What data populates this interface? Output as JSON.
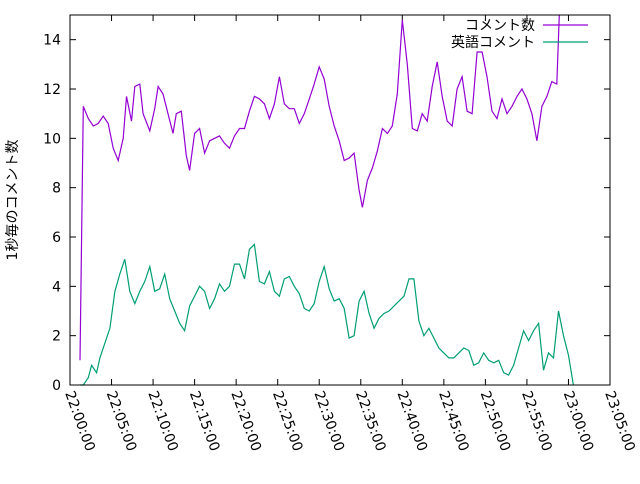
{
  "chart_data": {
    "type": "line",
    "title": "",
    "xlabel": "",
    "ylabel": "1秒毎のコメント数",
    "x_range": [
      "22:00:00",
      "23:05:00"
    ],
    "y_range": [
      0,
      15
    ],
    "x_tick_labels": [
      "22:00:00",
      "22:05:00",
      "22:10:00",
      "22:15:00",
      "22:20:00",
      "22:25:00",
      "22:30:00",
      "22:35:00",
      "22:40:00",
      "22:45:00",
      "22:50:00",
      "22:55:00",
      "23:00:00",
      "23:05:00"
    ],
    "y_tick_labels": [
      "0",
      "2",
      "4",
      "6",
      "8",
      "10",
      "12",
      "14"
    ],
    "legend_position": "top-right",
    "grid": false,
    "series": [
      {
        "name": "コメント数",
        "color": "#9400d3",
        "points": [
          [
            "22:01:12",
            1.0
          ],
          [
            "22:01:36",
            11.3
          ],
          [
            "22:02:12",
            10.8
          ],
          [
            "22:02:48",
            10.5
          ],
          [
            "22:03:24",
            10.6
          ],
          [
            "22:04:00",
            10.9
          ],
          [
            "22:04:36",
            10.6
          ],
          [
            "22:05:12",
            9.6
          ],
          [
            "22:05:48",
            9.1
          ],
          [
            "22:06:24",
            10.0
          ],
          [
            "22:06:48",
            11.7
          ],
          [
            "22:07:24",
            10.7
          ],
          [
            "22:07:48",
            12.1
          ],
          [
            "22:08:24",
            12.2
          ],
          [
            "22:08:48",
            11.0
          ],
          [
            "22:09:36",
            10.3
          ],
          [
            "22:10:12",
            11.2
          ],
          [
            "22:10:36",
            12.1
          ],
          [
            "22:11:12",
            11.8
          ],
          [
            "22:11:48",
            11.0
          ],
          [
            "22:12:24",
            10.2
          ],
          [
            "22:12:48",
            11.0
          ],
          [
            "22:13:24",
            11.1
          ],
          [
            "22:14:00",
            9.3
          ],
          [
            "22:14:24",
            8.7
          ],
          [
            "22:15:00",
            10.2
          ],
          [
            "22:15:36",
            10.4
          ],
          [
            "22:16:12",
            9.4
          ],
          [
            "22:16:48",
            9.9
          ],
          [
            "22:17:24",
            10.0
          ],
          [
            "22:18:00",
            10.1
          ],
          [
            "22:18:36",
            9.8
          ],
          [
            "22:19:12",
            9.6
          ],
          [
            "22:19:48",
            10.1
          ],
          [
            "22:20:24",
            10.4
          ],
          [
            "22:21:00",
            10.4
          ],
          [
            "22:21:36",
            11.1
          ],
          [
            "22:22:12",
            11.7
          ],
          [
            "22:22:48",
            11.6
          ],
          [
            "22:23:24",
            11.4
          ],
          [
            "22:24:00",
            10.8
          ],
          [
            "22:24:36",
            11.4
          ],
          [
            "22:25:12",
            12.5
          ],
          [
            "22:25:48",
            11.4
          ],
          [
            "22:26:24",
            11.2
          ],
          [
            "22:27:00",
            11.2
          ],
          [
            "22:27:36",
            10.6
          ],
          [
            "22:28:12",
            11.0
          ],
          [
            "22:28:48",
            11.6
          ],
          [
            "22:29:24",
            12.2
          ],
          [
            "22:30:00",
            12.9
          ],
          [
            "22:30:36",
            12.4
          ],
          [
            "22:31:12",
            11.3
          ],
          [
            "22:31:48",
            10.5
          ],
          [
            "22:32:24",
            9.9
          ],
          [
            "22:33:00",
            9.1
          ],
          [
            "22:33:36",
            9.2
          ],
          [
            "22:34:12",
            9.4
          ],
          [
            "22:34:48",
            7.9
          ],
          [
            "22:35:12",
            7.2
          ],
          [
            "22:35:48",
            8.3
          ],
          [
            "22:36:24",
            8.8
          ],
          [
            "22:37:00",
            9.5
          ],
          [
            "22:37:36",
            10.4
          ],
          [
            "22:38:12",
            10.2
          ],
          [
            "22:38:48",
            10.5
          ],
          [
            "22:39:24",
            11.8
          ],
          [
            "22:40:00",
            14.8
          ],
          [
            "22:40:36",
            13.0
          ],
          [
            "22:41:12",
            10.4
          ],
          [
            "22:41:48",
            10.3
          ],
          [
            "22:42:24",
            11.0
          ],
          [
            "22:43:00",
            10.7
          ],
          [
            "22:43:36",
            12.1
          ],
          [
            "22:44:12",
            13.1
          ],
          [
            "22:44:48",
            11.7
          ],
          [
            "22:45:24",
            10.7
          ],
          [
            "22:46:00",
            10.5
          ],
          [
            "22:46:36",
            12.0
          ],
          [
            "22:47:12",
            12.5
          ],
          [
            "22:47:48",
            11.1
          ],
          [
            "22:48:24",
            11.0
          ],
          [
            "22:49:00",
            13.5
          ],
          [
            "22:49:36",
            13.5
          ],
          [
            "22:50:12",
            12.5
          ],
          [
            "22:50:48",
            11.1
          ],
          [
            "22:51:24",
            10.8
          ],
          [
            "22:52:00",
            11.6
          ],
          [
            "22:52:36",
            11.0
          ],
          [
            "22:53:12",
            11.3
          ],
          [
            "22:53:48",
            11.7
          ],
          [
            "22:54:24",
            12.0
          ],
          [
            "22:55:00",
            11.6
          ],
          [
            "22:55:36",
            11.0
          ],
          [
            "22:56:12",
            9.9
          ],
          [
            "22:56:48",
            11.3
          ],
          [
            "22:57:24",
            11.7
          ],
          [
            "22:58:00",
            12.3
          ],
          [
            "22:58:36",
            12.2
          ],
          [
            "22:58:54",
            15.0
          ]
        ]
      },
      {
        "name": "英語コメント",
        "color": "#009e73",
        "points": [
          [
            "22:01:12",
            0.0
          ],
          [
            "22:01:36",
            0.0
          ],
          [
            "22:02:12",
            0.3
          ],
          [
            "22:02:36",
            0.8
          ],
          [
            "22:03:12",
            0.5
          ],
          [
            "22:03:36",
            1.1
          ],
          [
            "22:04:12",
            1.7
          ],
          [
            "22:04:48",
            2.3
          ],
          [
            "22:05:24",
            3.8
          ],
          [
            "22:06:00",
            4.5
          ],
          [
            "22:06:36",
            5.1
          ],
          [
            "22:07:12",
            3.8
          ],
          [
            "22:07:48",
            3.3
          ],
          [
            "22:08:24",
            3.8
          ],
          [
            "22:09:00",
            4.2
          ],
          [
            "22:09:36",
            4.8
          ],
          [
            "22:10:12",
            3.8
          ],
          [
            "22:10:48",
            3.9
          ],
          [
            "22:11:24",
            4.5
          ],
          [
            "22:12:00",
            3.5
          ],
          [
            "22:12:36",
            3.0
          ],
          [
            "22:13:12",
            2.5
          ],
          [
            "22:13:48",
            2.2
          ],
          [
            "22:14:24",
            3.2
          ],
          [
            "22:15:00",
            3.6
          ],
          [
            "22:15:36",
            4.0
          ],
          [
            "22:16:12",
            3.8
          ],
          [
            "22:16:48",
            3.1
          ],
          [
            "22:17:24",
            3.5
          ],
          [
            "22:18:00",
            4.1
          ],
          [
            "22:18:36",
            3.8
          ],
          [
            "22:19:12",
            4.0
          ],
          [
            "22:19:48",
            4.9
          ],
          [
            "22:20:24",
            4.9
          ],
          [
            "22:21:00",
            4.3
          ],
          [
            "22:21:36",
            5.5
          ],
          [
            "22:22:12",
            5.7
          ],
          [
            "22:22:48",
            4.2
          ],
          [
            "22:23:24",
            4.1
          ],
          [
            "22:24:00",
            4.6
          ],
          [
            "22:24:36",
            3.8
          ],
          [
            "22:25:12",
            3.6
          ],
          [
            "22:25:48",
            4.3
          ],
          [
            "22:26:24",
            4.4
          ],
          [
            "22:27:00",
            4.0
          ],
          [
            "22:27:36",
            3.7
          ],
          [
            "22:28:12",
            3.1
          ],
          [
            "22:28:48",
            3.0
          ],
          [
            "22:29:24",
            3.3
          ],
          [
            "22:30:00",
            4.2
          ],
          [
            "22:30:36",
            4.8
          ],
          [
            "22:31:12",
            3.9
          ],
          [
            "22:31:48",
            3.4
          ],
          [
            "22:32:24",
            3.5
          ],
          [
            "22:33:00",
            3.1
          ],
          [
            "22:33:36",
            1.9
          ],
          [
            "22:34:12",
            2.0
          ],
          [
            "22:34:48",
            3.4
          ],
          [
            "22:35:24",
            3.8
          ],
          [
            "22:36:00",
            2.9
          ],
          [
            "22:36:36",
            2.3
          ],
          [
            "22:37:12",
            2.7
          ],
          [
            "22:37:48",
            2.9
          ],
          [
            "22:38:24",
            3.0
          ],
          [
            "22:39:00",
            3.2
          ],
          [
            "22:39:36",
            3.4
          ],
          [
            "22:40:12",
            3.6
          ],
          [
            "22:40:48",
            4.3
          ],
          [
            "22:41:24",
            4.3
          ],
          [
            "22:42:00",
            2.6
          ],
          [
            "22:42:36",
            2.0
          ],
          [
            "22:43:12",
            2.3
          ],
          [
            "22:43:48",
            1.9
          ],
          [
            "22:44:24",
            1.5
          ],
          [
            "22:45:00",
            1.3
          ],
          [
            "22:45:36",
            1.1
          ],
          [
            "22:46:12",
            1.1
          ],
          [
            "22:46:48",
            1.3
          ],
          [
            "22:47:24",
            1.5
          ],
          [
            "22:48:00",
            1.4
          ],
          [
            "22:48:36",
            0.8
          ],
          [
            "22:49:12",
            0.9
          ],
          [
            "22:49:48",
            1.3
          ],
          [
            "22:50:24",
            1.0
          ],
          [
            "22:51:00",
            0.9
          ],
          [
            "22:51:36",
            1.0
          ],
          [
            "22:52:12",
            0.5
          ],
          [
            "22:52:48",
            0.4
          ],
          [
            "22:53:24",
            0.8
          ],
          [
            "22:54:00",
            1.5
          ],
          [
            "22:54:36",
            2.2
          ],
          [
            "22:55:12",
            1.8
          ],
          [
            "22:55:48",
            2.2
          ],
          [
            "22:56:24",
            2.5
          ],
          [
            "22:57:00",
            0.6
          ],
          [
            "22:57:36",
            1.3
          ],
          [
            "22:58:12",
            1.1
          ],
          [
            "22:58:48",
            3.0
          ],
          [
            "22:59:24",
            2.0
          ],
          [
            "23:00:00",
            1.2
          ],
          [
            "23:00:36",
            0.0
          ]
        ]
      }
    ]
  }
}
